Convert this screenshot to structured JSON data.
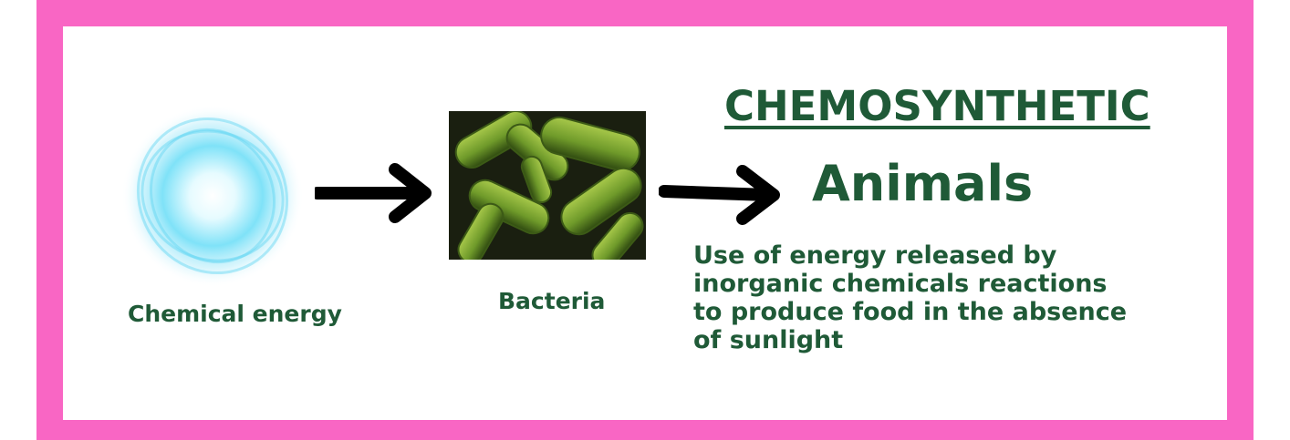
{
  "diagram": {
    "title": "CHEMOSYNTHETIC",
    "subtitle": "Animals",
    "description": "Use of energy released by\n inorganic chemicals reactions\nto produce food in the absence\nof sunlight",
    "nodes": [
      {
        "label": "Chemical energy",
        "icon": "energy-orb-icon"
      },
      {
        "label": "Bacteria",
        "icon": "bacteria-image"
      }
    ]
  },
  "colors": {
    "border": "#f966c4",
    "text": "#1f5a37",
    "arrow": "#000000",
    "energy": "#6fdcf5",
    "bacteria": "#6f9a2a"
  }
}
